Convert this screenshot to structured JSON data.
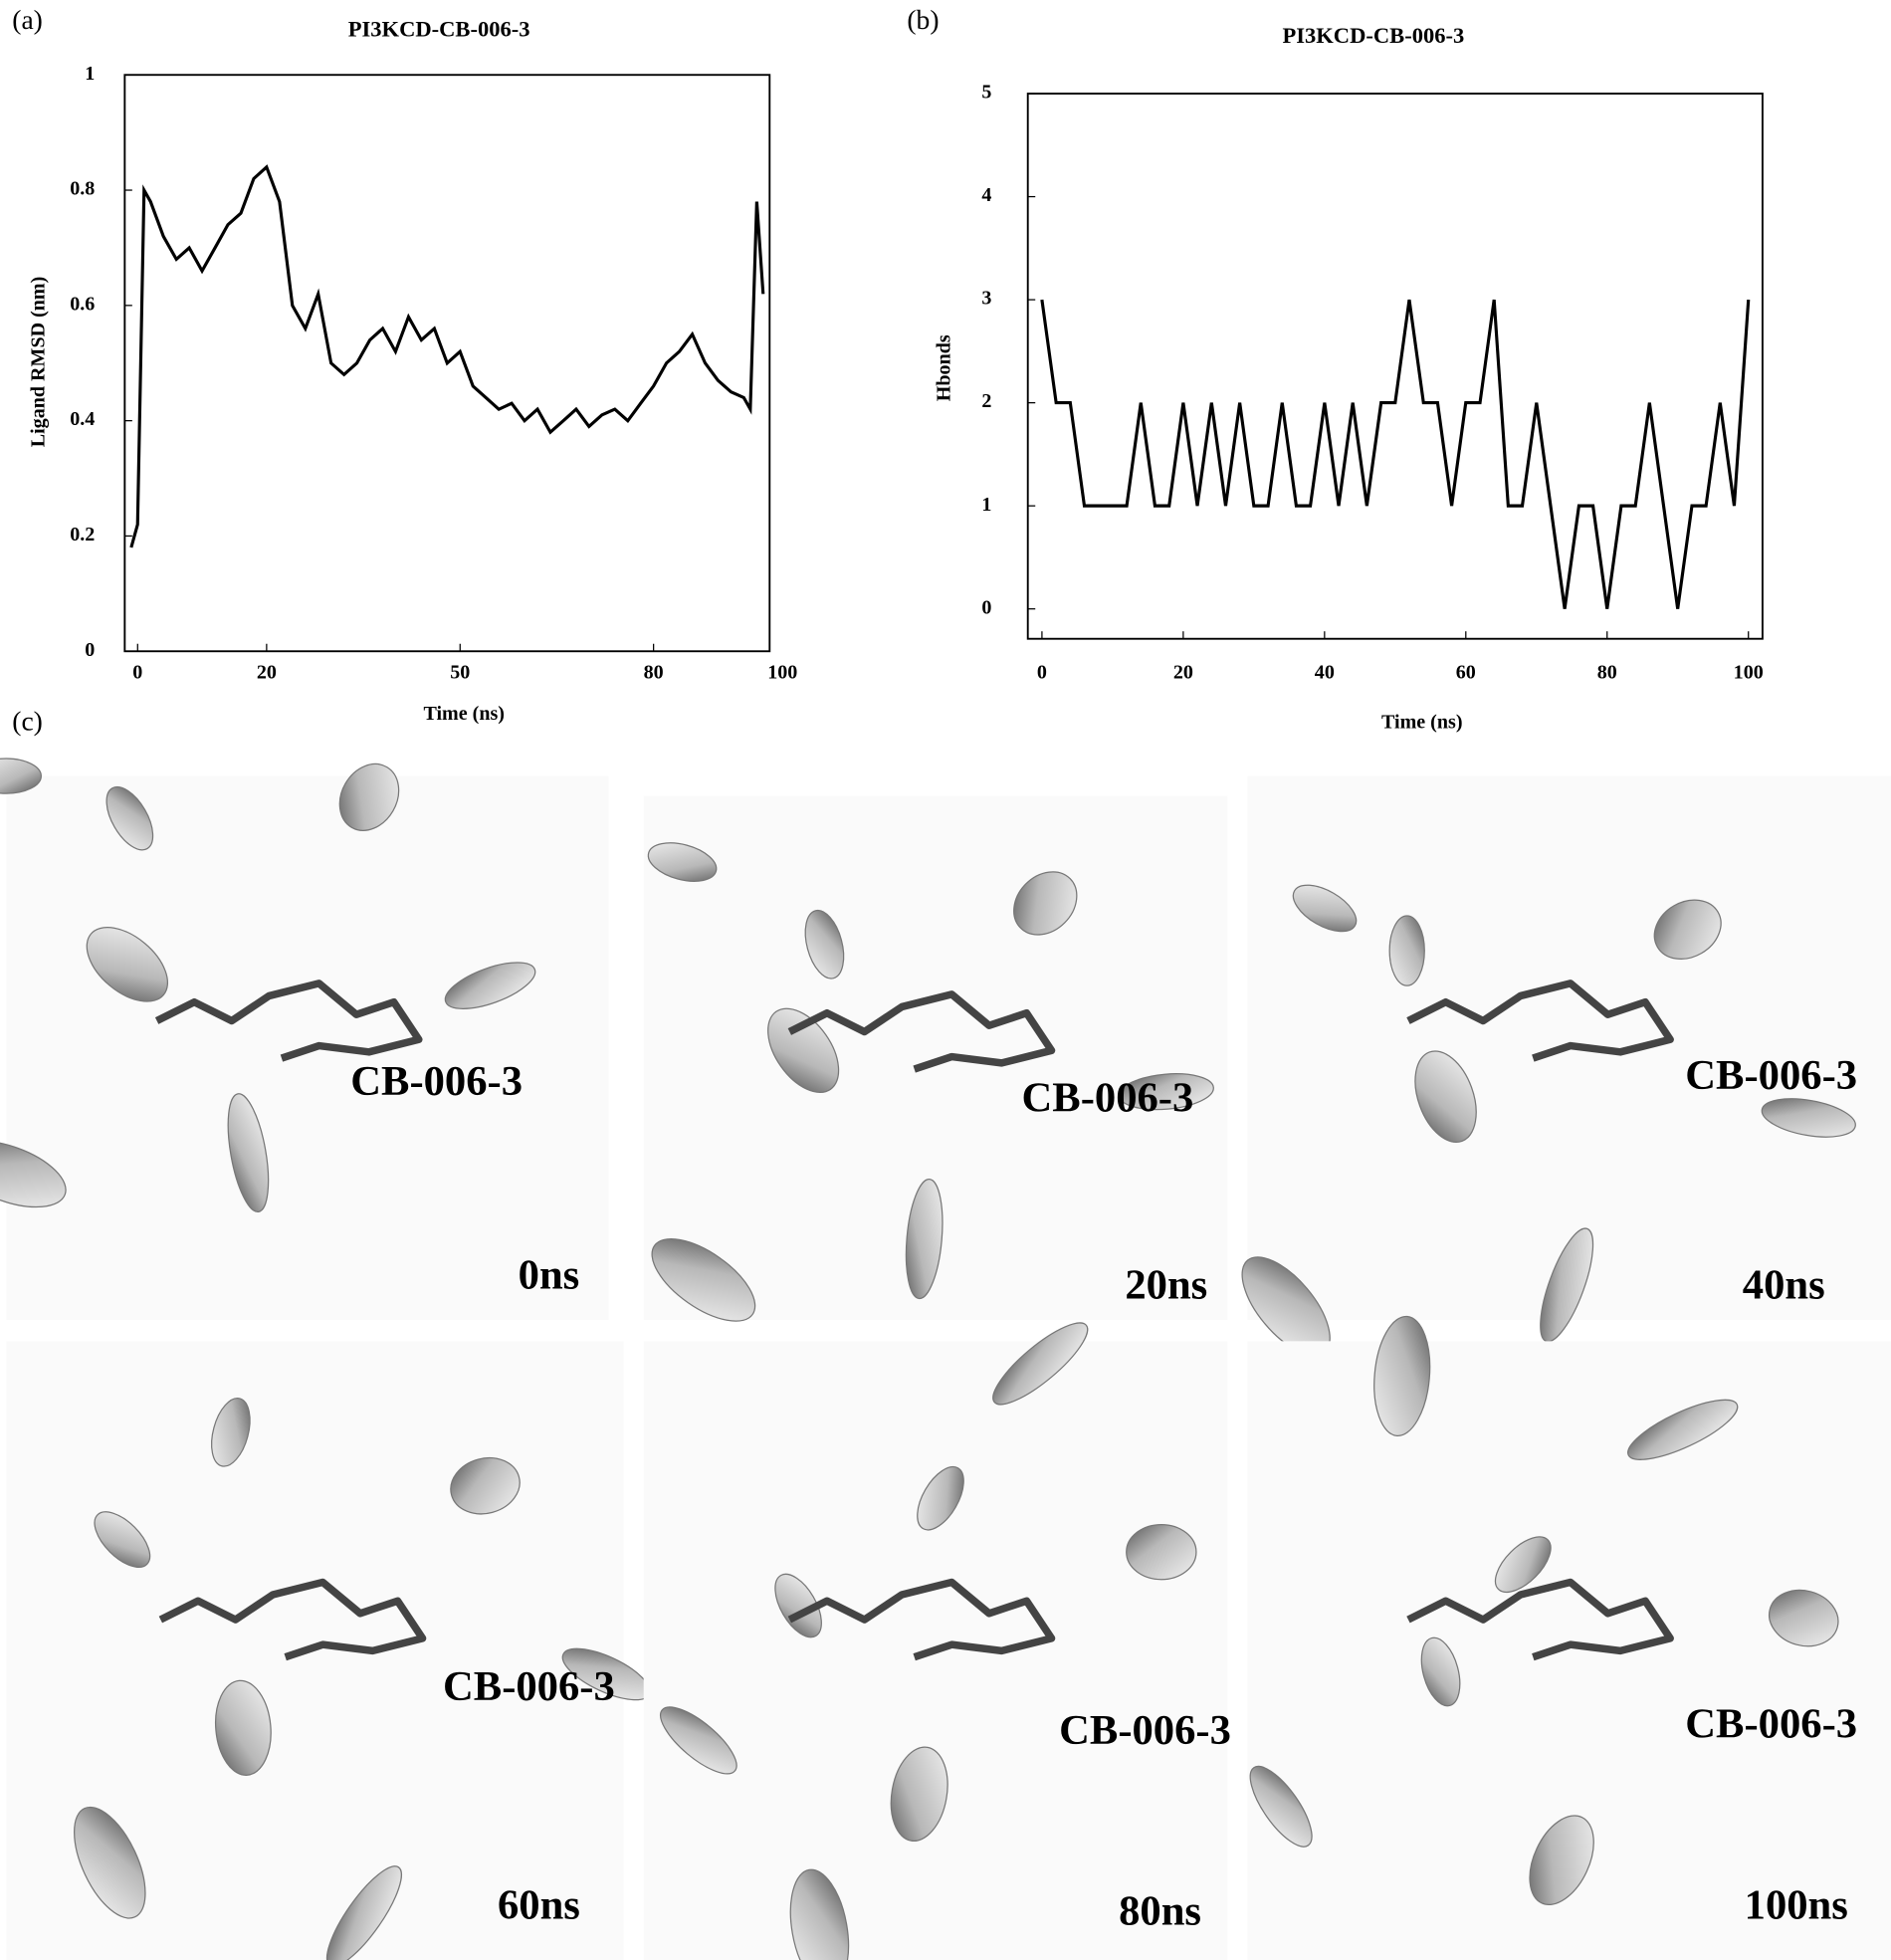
{
  "panel_labels": [
    "(a)",
    "(b)",
    "(c)"
  ],
  "chart_data": [
    {
      "type": "line",
      "title": "PI3KCD-CB-006-3",
      "xlabel": "Time (ns)",
      "ylabel": "Ligand RMSD (nm)",
      "color": "#000000",
      "x": [
        -1,
        0,
        1,
        2,
        4,
        6,
        8,
        10,
        12,
        14,
        16,
        18,
        20,
        22,
        24,
        26,
        28,
        30,
        32,
        34,
        36,
        38,
        40,
        42,
        44,
        46,
        48,
        50,
        52,
        54,
        56,
        58,
        60,
        62,
        64,
        66,
        68,
        70,
        72,
        74,
        76,
        78,
        80,
        82,
        84,
        86,
        88,
        90,
        92,
        94,
        95,
        96,
        97
      ],
      "values": [
        0.18,
        0.22,
        0.8,
        0.78,
        0.72,
        0.68,
        0.7,
        0.66,
        0.7,
        0.74,
        0.76,
        0.82,
        0.84,
        0.78,
        0.6,
        0.56,
        0.62,
        0.5,
        0.48,
        0.5,
        0.54,
        0.56,
        0.52,
        0.58,
        0.54,
        0.56,
        0.5,
        0.52,
        0.46,
        0.44,
        0.42,
        0.43,
        0.4,
        0.42,
        0.38,
        0.4,
        0.42,
        0.39,
        0.41,
        0.42,
        0.4,
        0.43,
        0.46,
        0.5,
        0.52,
        0.55,
        0.5,
        0.47,
        0.45,
        0.44,
        0.42,
        0.78,
        0.62
      ],
      "xlim": [
        -2,
        98
      ],
      "ylim": [
        0,
        1
      ],
      "xticks": [
        0,
        20,
        50,
        80,
        100
      ],
      "yticks": [
        0,
        0.2,
        0.4,
        0.6,
        0.8,
        1
      ]
    },
    {
      "type": "line",
      "title": "PI3KCD-CB-006-3",
      "xlabel": "Time (ns)",
      "ylabel": "Hbonds",
      "color": "#000000",
      "x": [
        0,
        2,
        4,
        6,
        8,
        10,
        12,
        14,
        16,
        18,
        20,
        22,
        24,
        26,
        28,
        30,
        32,
        34,
        36,
        38,
        40,
        42,
        44,
        46,
        48,
        50,
        52,
        54,
        56,
        58,
        60,
        62,
        64,
        66,
        68,
        70,
        72,
        74,
        76,
        78,
        80,
        82,
        84,
        86,
        88,
        90,
        92,
        94,
        96,
        98,
        100
      ],
      "values": [
        3,
        2,
        2,
        1,
        1,
        1,
        1,
        2,
        1,
        1,
        2,
        1,
        2,
        1,
        2,
        1,
        1,
        2,
        1,
        1,
        2,
        1,
        2,
        1,
        2,
        2,
        3,
        2,
        2,
        1,
        2,
        2,
        3,
        1,
        1,
        2,
        1,
        0,
        1,
        1,
        0,
        1,
        1,
        2,
        1,
        0,
        1,
        1,
        2,
        1,
        3
      ],
      "xlim": [
        -2,
        102
      ],
      "ylim": [
        -0.29,
        5
      ],
      "xticks": [
        0,
        20,
        40,
        60,
        80,
        100
      ],
      "yticks": [
        0,
        1,
        2,
        3,
        4,
        5
      ]
    }
  ],
  "snapshots": [
    {
      "label": "CB-006-3",
      "time": "0ns"
    },
    {
      "label": "CB-006-3",
      "time": "20ns"
    },
    {
      "label": "CB-006-3",
      "time": "40ns"
    },
    {
      "label": "CB-006-3",
      "time": "60ns"
    },
    {
      "label": "CB-006-3",
      "time": "80ns"
    },
    {
      "label": "CB-006-3",
      "time": "100ns"
    }
  ]
}
